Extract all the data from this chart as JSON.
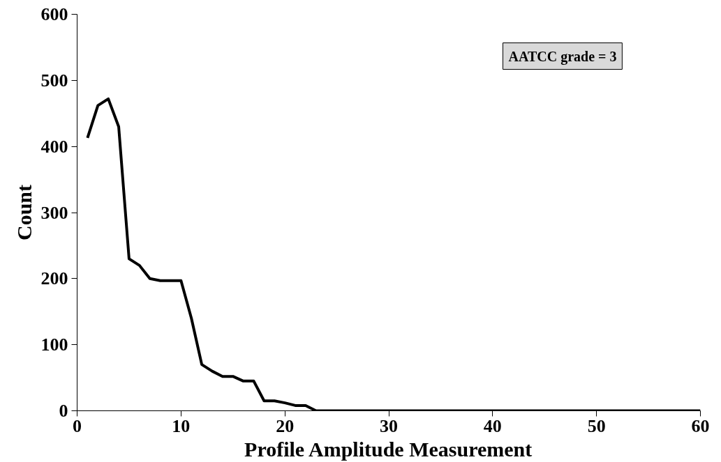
{
  "chart_data": {
    "type": "line",
    "xlabel": "Profile Amplitude Measurement",
    "ylabel": "Count",
    "x": [
      1,
      2,
      3,
      4,
      4.5,
      5,
      6,
      7,
      8,
      9,
      10,
      11,
      12,
      13,
      14,
      15,
      16,
      17,
      18,
      19,
      20,
      21,
      22,
      23,
      24,
      25,
      26,
      27,
      28,
      29,
      30,
      31,
      32,
      33,
      34,
      35,
      36,
      37,
      38,
      39,
      40,
      41,
      42,
      43,
      44,
      45,
      46,
      47,
      48,
      49,
      50,
      51,
      52,
      53,
      54,
      55,
      56,
      57,
      58,
      59,
      60
    ],
    "series": [
      {
        "color": "#000000",
        "values": [
          413,
          462,
          472,
          430,
          330,
          230,
          220,
          200,
          197,
          197,
          197,
          140,
          70,
          60,
          52,
          52,
          45,
          45,
          15,
          15,
          12,
          8,
          8,
          0,
          0,
          0,
          0,
          0,
          0,
          0,
          0,
          0,
          0,
          0,
          0,
          0,
          0,
          0,
          0,
          0,
          0,
          0,
          0,
          0,
          0,
          0,
          0,
          0,
          0,
          0,
          0,
          0,
          0,
          0,
          0,
          0,
          0,
          0,
          0,
          0,
          0
        ]
      }
    ],
    "xlim": [
      0,
      60
    ],
    "xticks": [
      0,
      10,
      20,
      30,
      40,
      50,
      60
    ],
    "ylim": [
      0,
      600
    ],
    "yticks": [
      0,
      100,
      200,
      300,
      400,
      500,
      600
    ],
    "grid": false,
    "marker": "none",
    "line_style": "solid",
    "annotations": [
      "AATCC grade = 3"
    ]
  }
}
